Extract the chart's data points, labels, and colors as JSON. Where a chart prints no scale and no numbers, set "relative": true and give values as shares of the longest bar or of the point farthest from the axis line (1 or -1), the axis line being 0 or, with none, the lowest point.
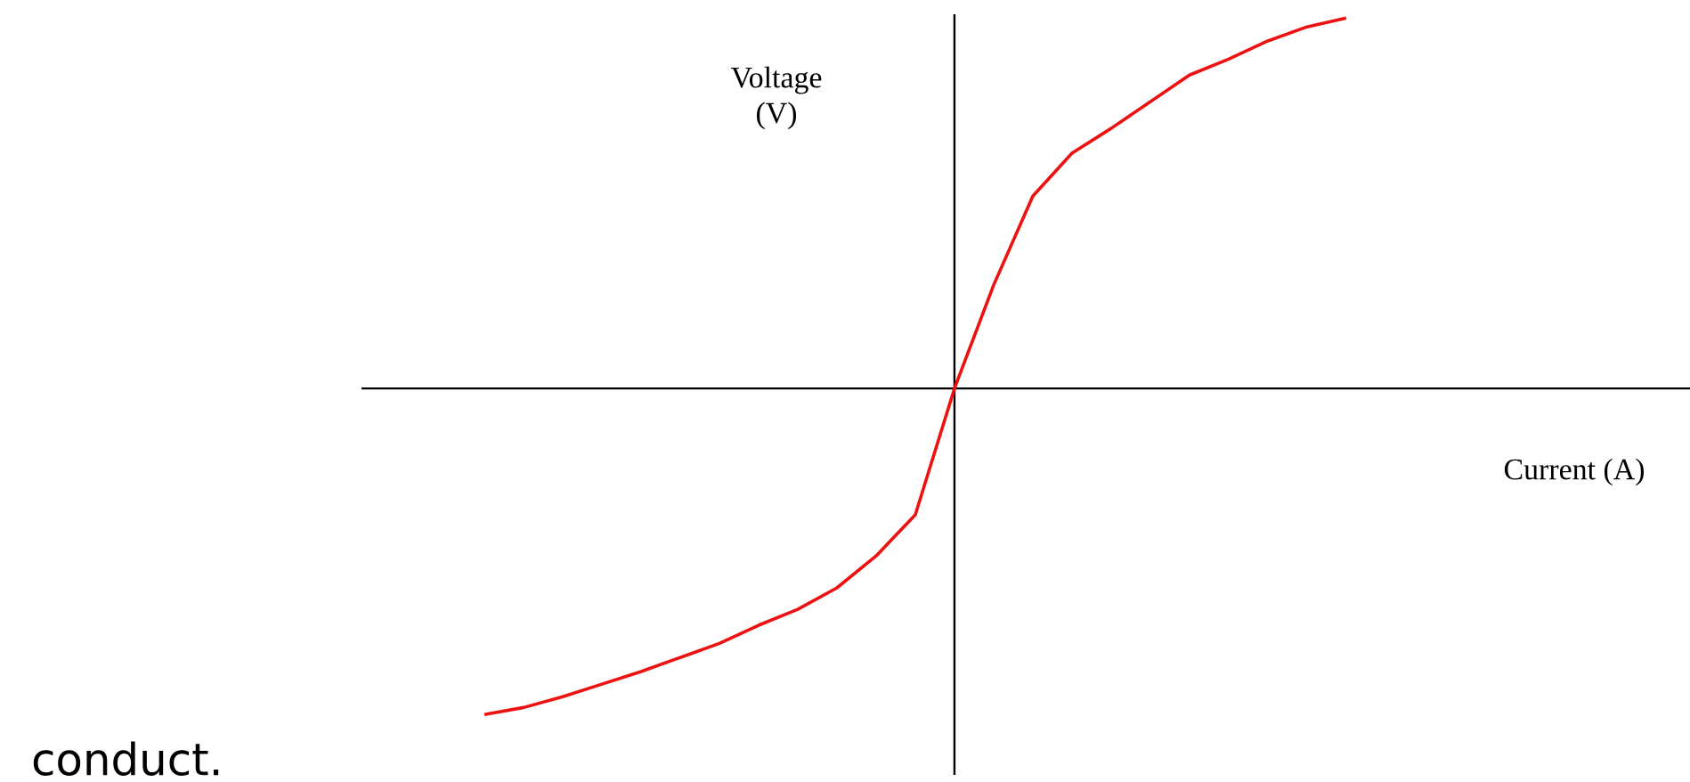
{
  "chart_data": {
    "type": "line",
    "relative": true,
    "xlabel": "Current (A)",
    "ylabel": "Voltage (V)",
    "annotations": [
      "conduct."
    ],
    "color": "#ee1111",
    "categories": [
      null,
      null,
      null,
      null,
      null,
      null,
      null,
      null,
      null,
      null,
      null,
      null,
      null,
      null,
      null,
      null,
      null,
      null,
      null,
      null,
      null,
      null,
      null
    ],
    "values": [
      -0.88,
      -0.861,
      -0.832,
      -0.798,
      -0.764,
      -0.726,
      -0.688,
      -0.639,
      -0.596,
      -0.538,
      -0.452,
      -0.341,
      0,
      0.279,
      0.519,
      0.635,
      0.702,
      0.774,
      0.846,
      0.889,
      0.938,
      0.976,
      1.0
    ]
  }
}
